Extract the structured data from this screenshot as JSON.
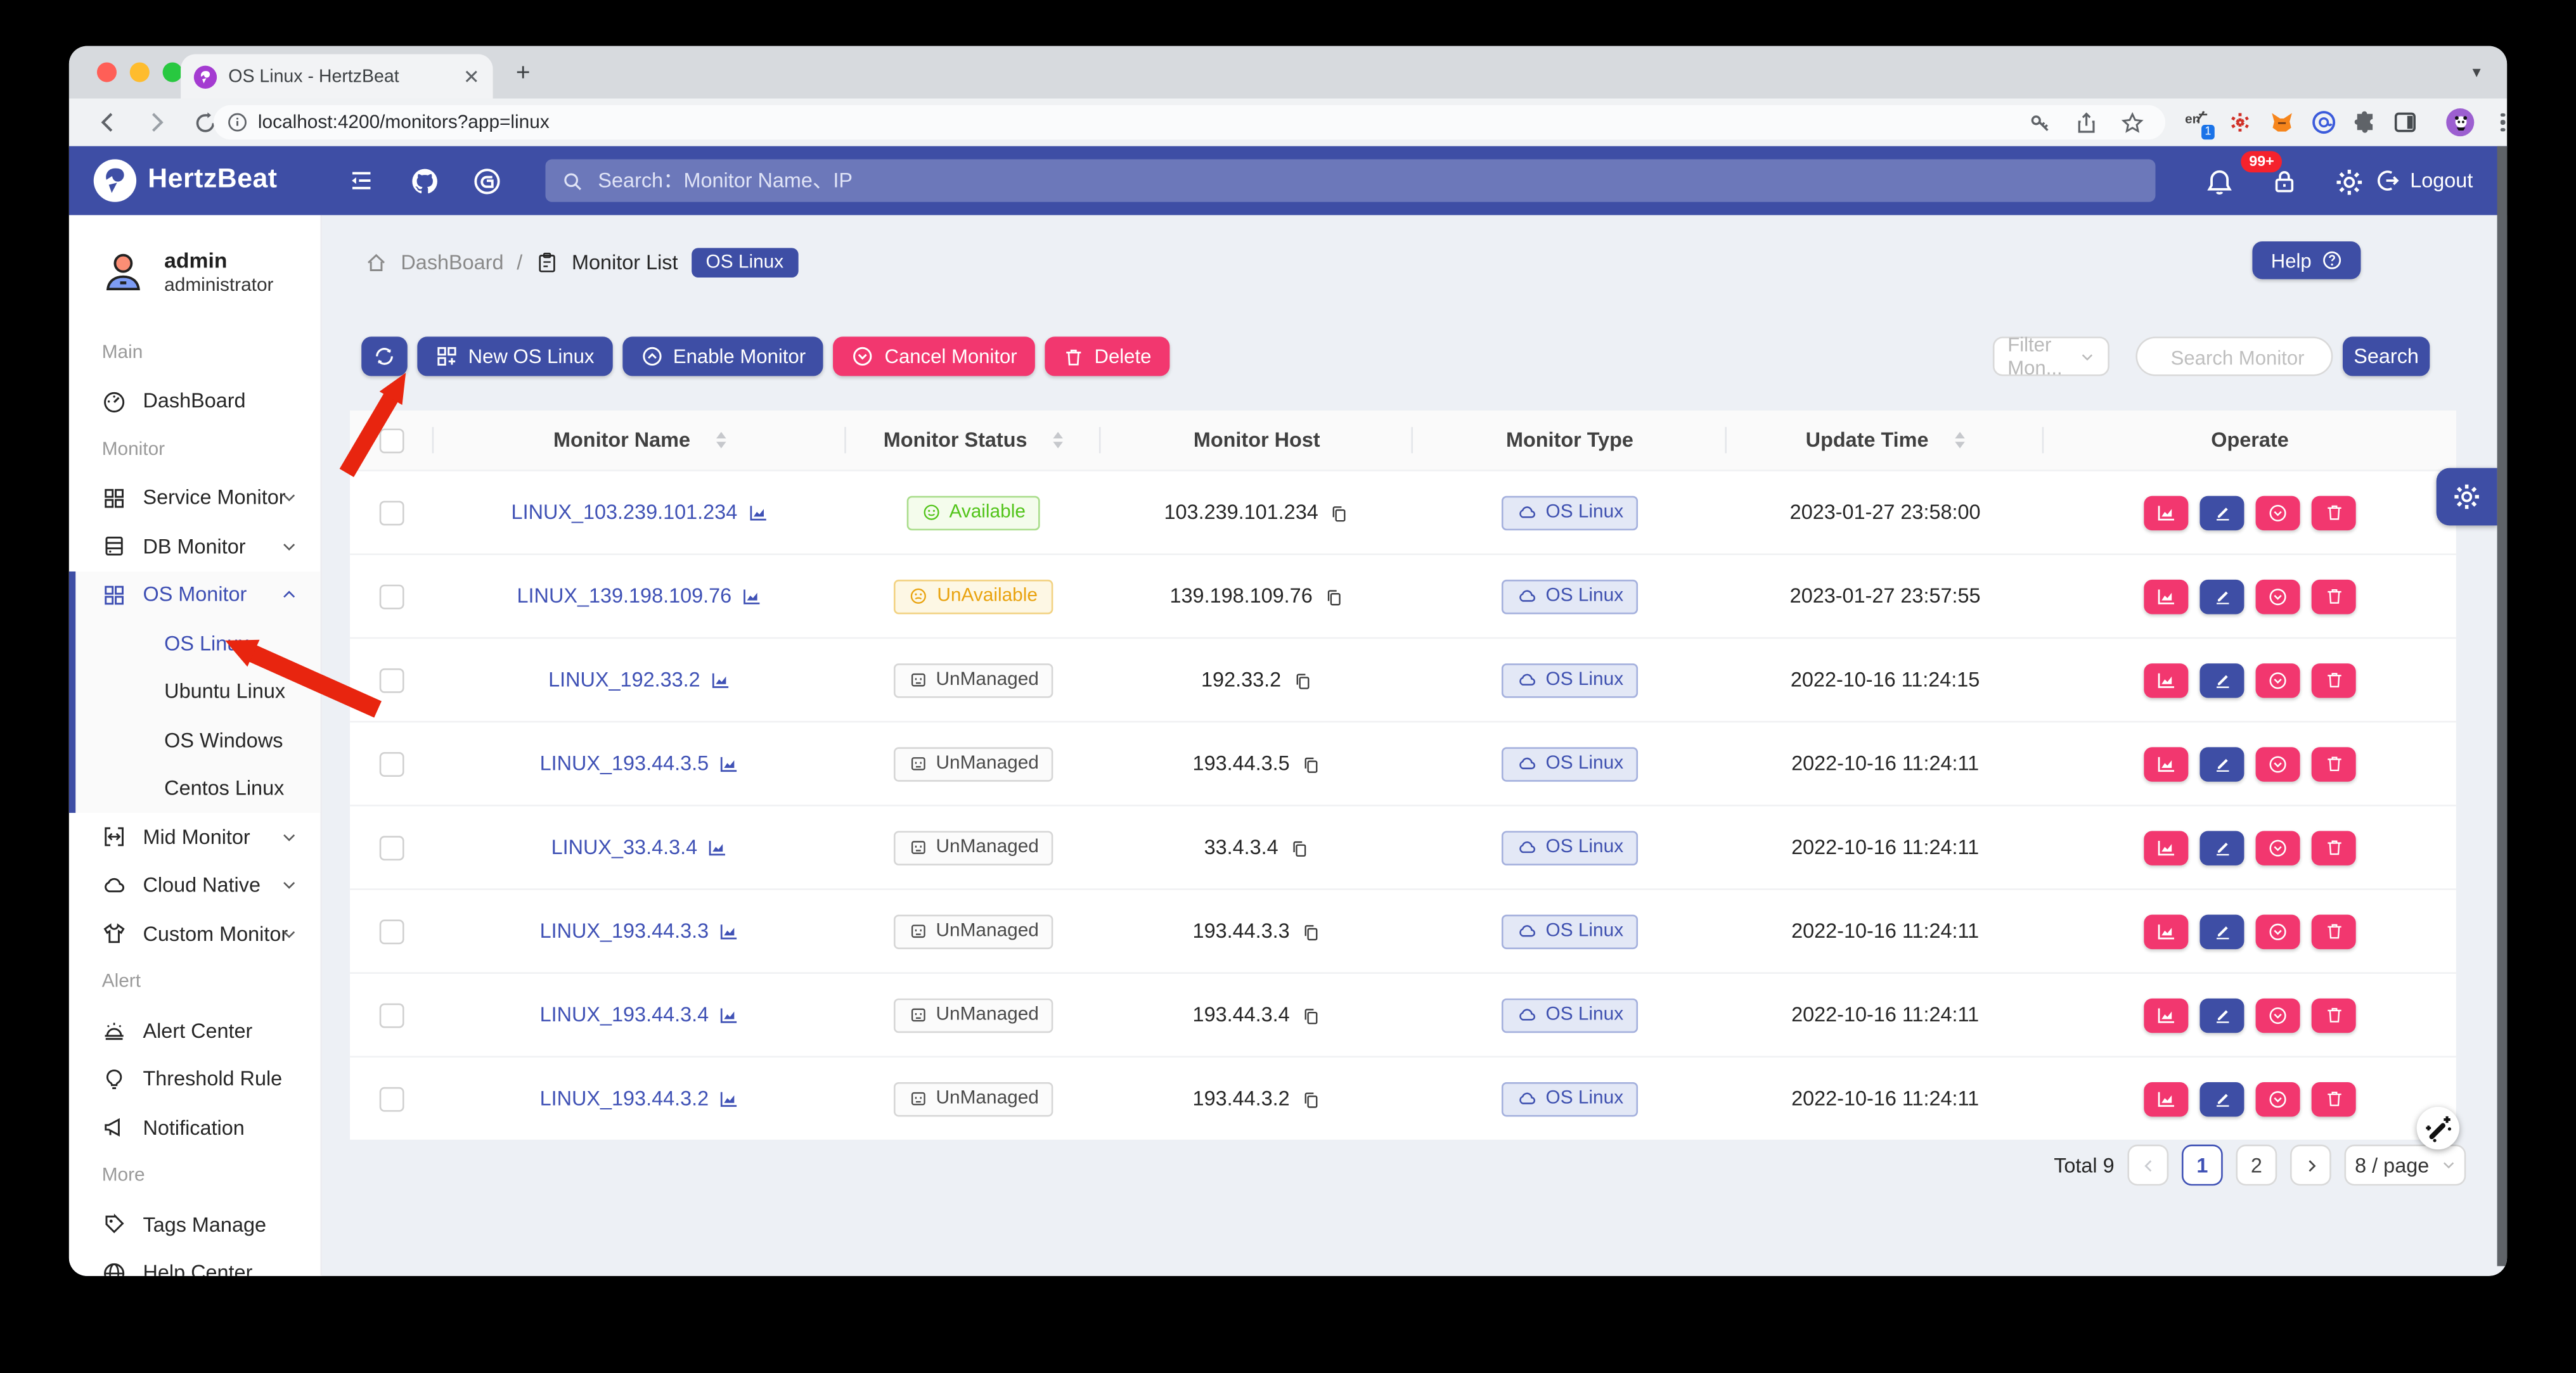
{
  "browser": {
    "tab_title": "OS Linux - HertzBeat",
    "url": "localhost:4200/monitors?app=linux",
    "ext_lang": "en",
    "ext_badge": "1"
  },
  "navbar": {
    "brand": "HertzBeat",
    "search_placeholder": "Search：Monitor Name、IP",
    "notification_badge": "99+",
    "logout_label": "Logout"
  },
  "sidebar": {
    "user_name": "admin",
    "user_role": "administrator",
    "groups": [
      {
        "label": "Main",
        "items": [
          {
            "label": "DashBoard"
          }
        ]
      },
      {
        "label": "Monitor",
        "items": [
          {
            "label": "Service Monitor"
          },
          {
            "label": "DB Monitor"
          },
          {
            "label": "OS Monitor",
            "expanded": true,
            "children": [
              "OS Linux",
              "Ubuntu Linux",
              "OS Windows",
              "Centos Linux"
            ],
            "active_child": "OS Linux"
          },
          {
            "label": "Mid Monitor"
          },
          {
            "label": "Cloud Native"
          },
          {
            "label": "Custom Monitor"
          }
        ]
      },
      {
        "label": "Alert",
        "items": [
          {
            "label": "Alert Center"
          },
          {
            "label": "Threshold Rule"
          },
          {
            "label": "Notification"
          }
        ]
      },
      {
        "label": "More",
        "items": [
          {
            "label": "Tags Manage"
          },
          {
            "label": "Help Center"
          }
        ]
      }
    ]
  },
  "breadcrumb": {
    "home": "DashBoard",
    "list": "Monitor List",
    "badge": "OS Linux"
  },
  "help_label": "Help",
  "toolbar": {
    "new_label": "New OS Linux",
    "enable_label": "Enable Monitor",
    "cancel_label": "Cancel Monitor",
    "delete_label": "Delete",
    "filter_placeholder": "Filter Mon...",
    "search_placeholder": "Search Monitor",
    "search_label": "Search"
  },
  "table": {
    "columns": [
      "Monitor Name",
      "Monitor Status",
      "Monitor Host",
      "Monitor Type",
      "Update Time",
      "Operate"
    ],
    "rows": [
      {
        "name": "LINUX_103.239.101.234",
        "status": "Available",
        "state": "available",
        "host": "103.239.101.234",
        "type": "OS Linux",
        "time": "2023-01-27 23:58:00"
      },
      {
        "name": "LINUX_139.198.109.76",
        "status": "UnAvailable",
        "state": "unavailable",
        "host": "139.198.109.76",
        "type": "OS Linux",
        "time": "2023-01-27 23:57:55"
      },
      {
        "name": "LINUX_192.33.2",
        "status": "UnManaged",
        "state": "unmanaged",
        "host": "192.33.2",
        "type": "OS Linux",
        "time": "2022-10-16 11:24:15"
      },
      {
        "name": "LINUX_193.44.3.5",
        "status": "UnManaged",
        "state": "unmanaged",
        "host": "193.44.3.5",
        "type": "OS Linux",
        "time": "2022-10-16 11:24:11"
      },
      {
        "name": "LINUX_33.4.3.4",
        "status": "UnManaged",
        "state": "unmanaged",
        "host": "33.4.3.4",
        "type": "OS Linux",
        "time": "2022-10-16 11:24:11"
      },
      {
        "name": "LINUX_193.44.3.3",
        "status": "UnManaged",
        "state": "unmanaged",
        "host": "193.44.3.3",
        "type": "OS Linux",
        "time": "2022-10-16 11:24:11"
      },
      {
        "name": "LINUX_193.44.3.4",
        "status": "UnManaged",
        "state": "unmanaged",
        "host": "193.44.3.4",
        "type": "OS Linux",
        "time": "2022-10-16 11:24:11"
      },
      {
        "name": "LINUX_193.44.3.2",
        "status": "UnManaged",
        "state": "unmanaged",
        "host": "193.44.3.2",
        "type": "OS Linux",
        "time": "2022-10-16 11:24:11"
      }
    ]
  },
  "pagination": {
    "total": "Total 9",
    "page1": "1",
    "page2": "2",
    "page_size": "8 / page"
  },
  "colors": {
    "primary": "#3E4EA5",
    "pink": "#F2376F",
    "available": "#52C41A",
    "unavailable": "#FAAD14",
    "badge_red": "#F5222D"
  }
}
